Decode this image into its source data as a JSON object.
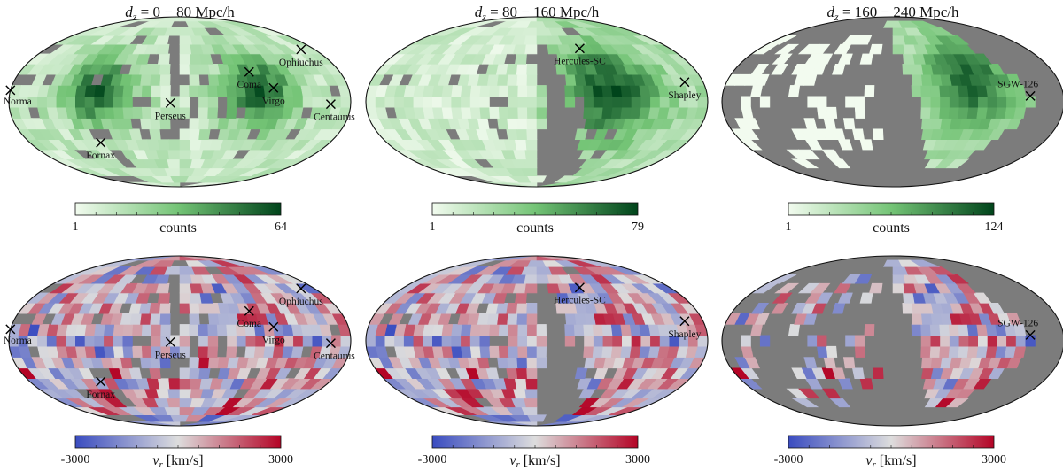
{
  "chart_data": {
    "type": "heatmap",
    "projection": "mollweide",
    "colors": {
      "masked": "#7c7c7c",
      "counts_low": "#f2fbef",
      "counts_mid": "#74c476",
      "counts_high": "#00441b",
      "vel_low": "#3a4cc0",
      "vel_mid": "#dddddd",
      "vel_high": "#b40426"
    },
    "panels": [
      {
        "id": "0-80",
        "title_var": "d",
        "title_sub": "z",
        "title_range": " = 0 − 80 Mpc/h",
        "counts": {
          "label": "counts",
          "min": "1",
          "max": "64"
        },
        "velocity": {
          "label_var": "v",
          "label_sub": "r",
          "label_unit": " [km/s]",
          "min": "-3000",
          "max": "3000"
        },
        "clusters": [
          {
            "name": "Norma",
            "lon": -180,
            "lat": 10,
            "label_pos": "below-left"
          },
          {
            "name": "Ophiuchus",
            "lon": 162,
            "lat": 47,
            "label_pos": "below"
          },
          {
            "name": "Coma",
            "lon": 78,
            "lat": 26,
            "label_pos": "below"
          },
          {
            "name": "Virgo",
            "lon": 100,
            "lat": 12,
            "label_pos": "below"
          },
          {
            "name": "Perseus",
            "lon": -10,
            "lat": -1,
            "label_pos": "below"
          },
          {
            "name": "Centaurus",
            "lon": 159,
            "lat": -2,
            "label_pos": "below-right"
          },
          {
            "name": "Fornax",
            "lon": -95,
            "lat": -36,
            "label_pos": "below"
          }
        ]
      },
      {
        "id": "80-160",
        "title_var": "d",
        "title_sub": "z",
        "title_range": " = 80 − 160 Mpc/h",
        "counts": {
          "label": "counts",
          "min": "1",
          "max": "79"
        },
        "velocity": {
          "label_var": "v",
          "label_sub": "r",
          "label_unit": " [km/s]",
          "min": "-3000",
          "max": "3000"
        },
        "clusters": [
          {
            "name": "Hercules-SC",
            "lon": 58,
            "lat": 48,
            "label_pos": "below"
          },
          {
            "name": "Shapley",
            "lon": 160,
            "lat": 17,
            "label_pos": "below"
          }
        ]
      },
      {
        "id": "160-240",
        "title_var": "d",
        "title_sub": "z",
        "title_range": " = 160 − 240 Mpc/h",
        "counts": {
          "label": "counts",
          "min": "1",
          "max": "124"
        },
        "velocity": {
          "label_var": "v",
          "label_sub": "r",
          "label_unit": " [km/s]",
          "min": "-3000",
          "max": "3000"
        },
        "clusters": [
          {
            "name": "SGW-126",
            "lon": 145,
            "lat": 5,
            "label_pos": "above-left"
          }
        ]
      }
    ]
  }
}
